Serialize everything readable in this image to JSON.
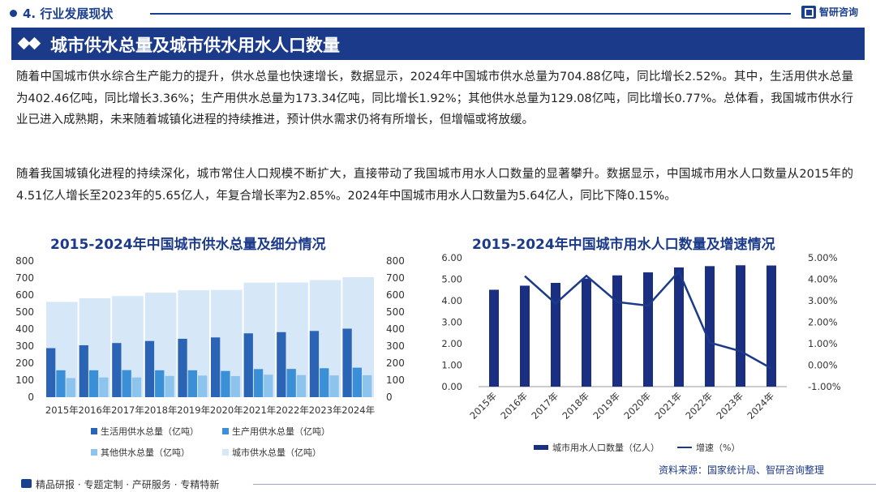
{
  "header": {
    "section": "4. 行业发展现状",
    "brand": "智研咨询",
    "banner_title": "城市供水总量及城市供水用水人口数量"
  },
  "paragraphs": {
    "p1": "随着中国城市供水综合生产能力的提升，供水总量也快速增长，数据显示，2024年中国城市供水总量为704.88亿吨，同比增长2.52%。其中，生活用供水总量为402.46亿吨，同比增长3.36%；生产用供水总量为173.34亿吨，同比增长1.92%；其他供水总量为129.08亿吨，同比增长0.77%。总体看，我国城市供水行业已进入成熟期，未来随着城镇化进程的持续推进，预计供水需求仍将有所增长，但增幅或将放缓。",
    "p2": "随着我国城镇化进程的持续深化，城市常住人口规模不断扩大，直接带动了我国城市用水人口数量的显著攀升。数据显示，中国城市用水人口数量从2015年的4.51亿人增长至2023年的5.65亿人，年复合增长率为2.85%。2024年中国城市用水人口数量为5.64亿人，同比下降0.15%。"
  },
  "chart_data": [
    {
      "type": "bar",
      "title": "2015-2024年中国城市供水总量及细分情况",
      "categories": [
        "2015年",
        "2016年",
        "2017年",
        "2018年",
        "2019年",
        "2020年",
        "2021年",
        "2022年",
        "2023年",
        "2024年"
      ],
      "series": [
        {
          "name": "生活用供水总量（亿吨）",
          "color": "#2b63b5",
          "values": [
            288,
            305,
            318,
            330,
            343,
            351,
            375,
            382,
            389,
            402.46
          ]
        },
        {
          "name": "生产用供水总量（亿吨）",
          "color": "#3a8fd6",
          "values": [
            158,
            158,
            159,
            158,
            158,
            154,
            165,
            166,
            170,
            173.34
          ]
        },
        {
          "name": "其他供水总量（亿吨）",
          "color": "#8dc4ee",
          "values": [
            112,
            116,
            116,
            125,
            127,
            124,
            132,
            130,
            128,
            129.08
          ]
        },
        {
          "name": "城市供水总量（亿吨）",
          "color": "#d6e8f8",
          "values": [
            560,
            581,
            594,
            614,
            628,
            630,
            673,
            674,
            688,
            704.88
          ]
        }
      ],
      "yticks": [
        "0",
        "100",
        "200",
        "300",
        "400",
        "500",
        "600",
        "700",
        "800"
      ],
      "ylim": [
        0,
        800
      ]
    },
    {
      "type": "bar",
      "title": "2015-2024年中国城市用水人口数量及增速情况",
      "categories": [
        "2015年",
        "2016年",
        "2017年",
        "2018年",
        "2019年",
        "2020年",
        "2021年",
        "2022年",
        "2023年",
        "2024年"
      ],
      "series": [
        {
          "name": "城市用水人口数量（亿人）",
          "color": "#1b2f82",
          "values": [
            4.51,
            4.7,
            4.83,
            5.03,
            5.18,
            5.32,
            5.55,
            5.61,
            5.65,
            5.64
          ]
        },
        {
          "name": "增速（%）",
          "color": "#1b3a8a",
          "type": "line",
          "values": [
            null,
            4.15,
            2.87,
            4.16,
            2.94,
            2.77,
            4.36,
            1.05,
            0.65,
            -0.15
          ]
        }
      ],
      "yticks_left": [
        "0.00",
        "1.00",
        "2.00",
        "3.00",
        "4.00",
        "5.00",
        "6.00"
      ],
      "yticks_right": [
        "-1.00%",
        "0.00%",
        "1.00%",
        "2.00%",
        "3.00%",
        "4.00%",
        "5.00%"
      ],
      "ylim_left": [
        0,
        6
      ],
      "ylim_right": [
        -1,
        5
      ]
    }
  ],
  "footer": {
    "source": "资料来源：国家统计局、智研咨询整理",
    "tagline": "精品研报 · 专题定制 · 产研服务 · 专精特新"
  }
}
